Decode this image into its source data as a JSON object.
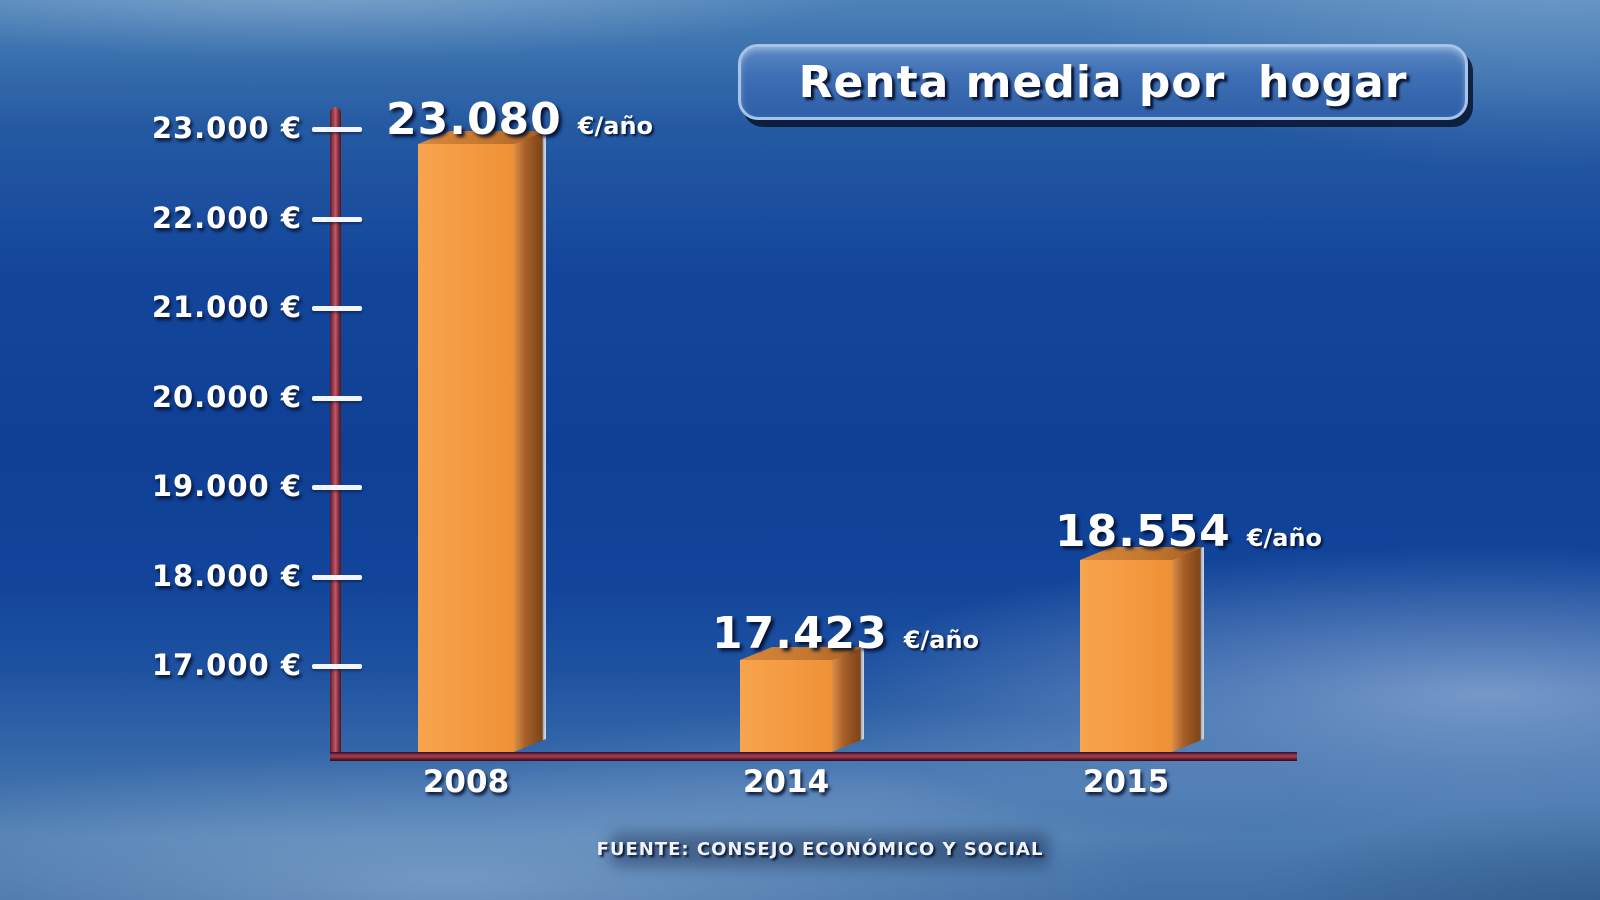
{
  "title": "Renta media por  hogar",
  "footer": {
    "source": "FUENTE: CONSEJO ECONÓMICO Y SOCIAL"
  },
  "chart_data": {
    "type": "bar",
    "title": "Renta media por hogar",
    "categories": [
      "2008",
      "2014",
      "2015"
    ],
    "values": [
      23080,
      17423,
      18554
    ],
    "value_labels": [
      "23.080",
      "17.423",
      "18.554"
    ],
    "unit": "€/año",
    "y_ticks": [
      "23.000 €",
      "22.000 €",
      "21.000 €",
      "20.000 €",
      "19.000 €",
      "18.000 €",
      "17.000 €"
    ],
    "y_tick_values": [
      23000,
      22000,
      21000,
      20000,
      19000,
      18000,
      17000
    ],
    "ylim": [
      16000,
      23500
    ],
    "grid": false,
    "legend": false,
    "xlabel": "",
    "ylabel": "",
    "bar_color": "#F49A40",
    "bar_side_color": "#8A4F1E",
    "axis_color": "#A83A4E",
    "background_color": "#0F4096",
    "source": "FUENTE: CONSEJO ECONÓMICO Y SOCIAL"
  }
}
